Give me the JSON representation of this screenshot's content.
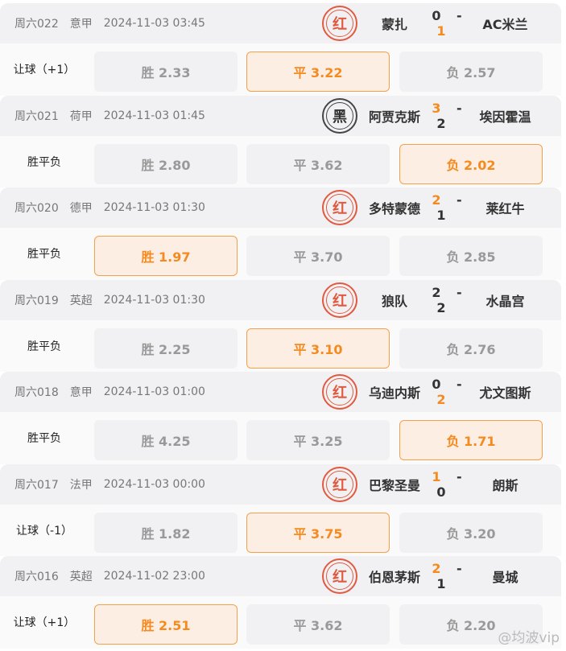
{
  "matches": [
    {
      "no": "周六022",
      "league": "意甲",
      "time": "2024-11-03 03:45",
      "stamp": "红",
      "home": "蒙扎",
      "hs": "0",
      "as": "1",
      "win": "away",
      "away": "AC米兰",
      "ptype": "让球（+1）",
      "odds": [
        "胜 2.33",
        "平 3.22",
        "负 2.57"
      ],
      "sel": 1
    },
    {
      "no": "周六021",
      "league": "荷甲",
      "time": "2024-11-03 01:45",
      "stamp": "黑",
      "home": "阿贾克斯",
      "hs": "3",
      "as": "2",
      "win": "home",
      "away": "埃因霍温",
      "ptype": "胜平负",
      "odds": [
        "胜 2.80",
        "平 3.62",
        "负 2.02"
      ],
      "sel": 2
    },
    {
      "no": "周六020",
      "league": "德甲",
      "time": "2024-11-03 01:30",
      "stamp": "红",
      "home": "多特蒙德",
      "hs": "2",
      "as": "1",
      "win": "home",
      "away": "莱红牛",
      "ptype": "胜平负",
      "odds": [
        "胜 1.97",
        "平 3.70",
        "负 2.85"
      ],
      "sel": 0
    },
    {
      "no": "周六019",
      "league": "英超",
      "time": "2024-11-03 01:30",
      "stamp": "红",
      "home": "狼队",
      "hs": "2",
      "as": "2",
      "win": "none",
      "away": "水晶宫",
      "ptype": "胜平负",
      "odds": [
        "胜 2.25",
        "平 3.10",
        "负 2.76"
      ],
      "sel": 1
    },
    {
      "no": "周六018",
      "league": "意甲",
      "time": "2024-11-03 01:00",
      "stamp": "红",
      "home": "乌迪内斯",
      "hs": "0",
      "as": "2",
      "win": "away",
      "away": "尤文图斯",
      "ptype": "胜平负",
      "odds": [
        "胜 4.25",
        "平 3.25",
        "负 1.71"
      ],
      "sel": 2
    },
    {
      "no": "周六017",
      "league": "法甲",
      "time": "2024-11-03 00:00",
      "stamp": "红",
      "home": "巴黎圣曼",
      "hs": "1",
      "as": "0",
      "win": "home",
      "away": "朗斯",
      "ptype": "让球（-1）",
      "odds": [
        "胜 1.82",
        "平 3.75",
        "负 3.20"
      ],
      "sel": 1
    },
    {
      "no": "周六016",
      "league": "英超",
      "time": "2024-11-02 23:00",
      "stamp": "红",
      "home": "伯恩茅斯",
      "hs": "2",
      "as": "1",
      "win": "home",
      "away": "曼城",
      "ptype": "让球（+1）",
      "odds": [
        "胜 2.51",
        "平 3.62",
        "负 2.20"
      ],
      "sel": 0
    }
  ],
  "watermark": "@均波vip",
  "colors": {
    "accent": "#f58a1f",
    "stamp_red": "#e05a40"
  }
}
